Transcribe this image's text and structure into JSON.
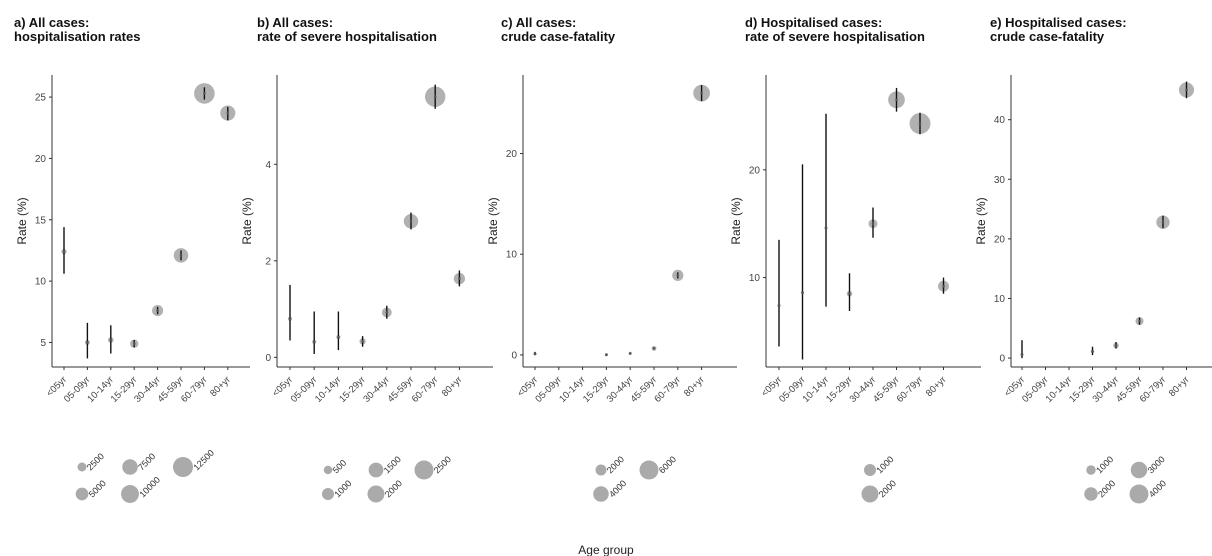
{
  "figure": {
    "x_axis_label": "Age group"
  },
  "chart_data": [
    {
      "type": "scatter",
      "title_line1": "a) All cases:",
      "title_line2": "hospitalisation rates",
      "xlabel": "Age group",
      "ylabel": "Rate (%)",
      "categories": [
        "<05yr",
        "05-09yr",
        "10-14yr",
        "15-29yr",
        "30-44yr",
        "45-59yr",
        "60-79yr",
        "80+yr"
      ],
      "ylim": [
        3,
        26.8
      ],
      "yticks": [
        5,
        10,
        15,
        20,
        25
      ],
      "points": [
        {
          "x": "<05yr",
          "y": 12.4,
          "lo": 10.6,
          "hi": 14.4,
          "n": 800
        },
        {
          "x": "05-09yr",
          "y": 5.0,
          "lo": 3.7,
          "hi": 6.6,
          "n": 700
        },
        {
          "x": "10-14yr",
          "y": 5.2,
          "lo": 4.1,
          "hi": 6.4,
          "n": 900
        },
        {
          "x": "15-29yr",
          "y": 4.9,
          "lo": 4.6,
          "hi": 5.2,
          "n": 2000
        },
        {
          "x": "30-44yr",
          "y": 7.6,
          "lo": 7.3,
          "hi": 7.9,
          "n": 3500
        },
        {
          "x": "45-59yr",
          "y": 12.1,
          "lo": 11.7,
          "hi": 12.5,
          "n": 6000
        },
        {
          "x": "60-79yr",
          "y": 25.3,
          "lo": 24.8,
          "hi": 25.8,
          "n": 12000
        },
        {
          "x": "80+yr",
          "y": 23.7,
          "lo": 23.1,
          "hi": 24.2,
          "n": 6500
        }
      ],
      "size_legend": [
        2500,
        5000,
        7500,
        10000,
        12500
      ]
    },
    {
      "type": "scatter",
      "title_line1": "b) All cases:",
      "title_line2": "rate of severe hospitalisation",
      "xlabel": "Age group",
      "ylabel": "Rate (%)",
      "categories": [
        "<05yr",
        "05-09yr",
        "10-14yr",
        "15-29yr",
        "30-44yr",
        "45-59yr",
        "60-79yr",
        "80+yr"
      ],
      "ylim": [
        -0.2,
        5.85
      ],
      "yticks": [
        0,
        2,
        4
      ],
      "points": [
        {
          "x": "<05yr",
          "y": 0.8,
          "lo": 0.35,
          "hi": 1.5,
          "n": 100
        },
        {
          "x": "05-09yr",
          "y": 0.32,
          "lo": 0.07,
          "hi": 0.95,
          "n": 100
        },
        {
          "x": "10-14yr",
          "y": 0.42,
          "lo": 0.15,
          "hi": 0.95,
          "n": 100
        },
        {
          "x": "15-29yr",
          "y": 0.33,
          "lo": 0.22,
          "hi": 0.44,
          "n": 250
        },
        {
          "x": "30-44yr",
          "y": 0.93,
          "lo": 0.8,
          "hi": 1.07,
          "n": 600
        },
        {
          "x": "45-59yr",
          "y": 2.82,
          "lo": 2.65,
          "hi": 3.0,
          "n": 1300
        },
        {
          "x": "60-79yr",
          "y": 5.4,
          "lo": 5.15,
          "hi": 5.65,
          "n": 2600
        },
        {
          "x": "80+yr",
          "y": 1.63,
          "lo": 1.47,
          "hi": 1.8,
          "n": 800
        }
      ],
      "size_legend": [
        500,
        1000,
        1500,
        2000,
        2500
      ]
    },
    {
      "type": "scatter",
      "title_line1": "c) All cases:",
      "title_line2": "crude case-fatality",
      "xlabel": "Age group",
      "ylabel": "Rate (%)",
      "categories": [
        "<05yr",
        "05-09yr",
        "10-14yr",
        "15-29yr",
        "30-44yr",
        "45-59yr",
        "60-79yr",
        "80+yr"
      ],
      "ylim": [
        -1.2,
        27.8
      ],
      "yticks": [
        0,
        10,
        20
      ],
      "points": [
        {
          "x": "<05yr",
          "y": 0.1,
          "lo": 0.0,
          "hi": 0.3,
          "n": 10
        },
        {
          "x": "15-29yr",
          "y": 0.02,
          "lo": 0.0,
          "hi": 0.05,
          "n": 20
        },
        {
          "x": "30-44yr",
          "y": 0.15,
          "lo": 0.1,
          "hi": 0.2,
          "n": 80
        },
        {
          "x": "45-59yr",
          "y": 0.65,
          "lo": 0.55,
          "hi": 0.75,
          "n": 350
        },
        {
          "x": "60-79yr",
          "y": 7.9,
          "lo": 7.6,
          "hi": 8.2,
          "n": 1900
        },
        {
          "x": "80+yr",
          "y": 26.0,
          "lo": 25.2,
          "hi": 26.8,
          "n": 4200
        }
      ],
      "size_legend": [
        2000,
        4000,
        6000
      ]
    },
    {
      "type": "scatter",
      "title_line1": "d) Hospitalised cases:",
      "title_line2": "rate of severe hospitalisation",
      "xlabel": "Age group",
      "ylabel": "Rate (%)",
      "categories": [
        "<05yr",
        "05-09yr",
        "10-14yr",
        "15-29yr",
        "30-44yr",
        "45-59yr",
        "60-79yr",
        "80+yr"
      ],
      "ylim": [
        1.7,
        28.8
      ],
      "yticks": [
        10,
        20
      ],
      "points": [
        {
          "x": "<05yr",
          "y": 7.4,
          "lo": 3.6,
          "hi": 13.5,
          "n": 30
        },
        {
          "x": "05-09yr",
          "y": 8.6,
          "lo": 2.4,
          "hi": 20.5,
          "n": 20
        },
        {
          "x": "10-14yr",
          "y": 14.6,
          "lo": 7.3,
          "hi": 25.2,
          "n": 30
        },
        {
          "x": "15-29yr",
          "y": 8.5,
          "lo": 6.9,
          "hi": 10.4,
          "n": 150
        },
        {
          "x": "30-44yr",
          "y": 15.0,
          "lo": 13.7,
          "hi": 16.5,
          "n": 400
        },
        {
          "x": "45-59yr",
          "y": 26.5,
          "lo": 25.4,
          "hi": 27.6,
          "n": 1400
        },
        {
          "x": "60-79yr",
          "y": 24.3,
          "lo": 23.3,
          "hi": 25.3,
          "n": 2200
        },
        {
          "x": "80+yr",
          "y": 9.2,
          "lo": 8.5,
          "hi": 10.0,
          "n": 600
        }
      ],
      "size_legend": [
        1000,
        2000
      ]
    },
    {
      "type": "scatter",
      "title_line1": "e) Hospitalised cases:",
      "title_line2": "crude case-fatality",
      "xlabel": "Age group",
      "ylabel": "Rate (%)",
      "categories": [
        "<05yr",
        "05-09yr",
        "10-14yr",
        "15-29yr",
        "30-44yr",
        "45-59yr",
        "60-79yr",
        "80+yr"
      ],
      "ylim": [
        -1.5,
        47.5
      ],
      "yticks": [
        0,
        10,
        20,
        30,
        40
      ],
      "points": [
        {
          "x": "<05yr",
          "y": 0.6,
          "lo": 0.0,
          "hi": 3.0,
          "n": 30
        },
        {
          "x": "15-29yr",
          "y": 1.1,
          "lo": 0.5,
          "hi": 1.9,
          "n": 150
        },
        {
          "x": "30-44yr",
          "y": 2.1,
          "lo": 1.6,
          "hi": 2.7,
          "n": 400
        },
        {
          "x": "45-59yr",
          "y": 6.2,
          "lo": 5.6,
          "hi": 6.8,
          "n": 800
        },
        {
          "x": "60-79yr",
          "y": 22.8,
          "lo": 21.8,
          "hi": 23.9,
          "n": 2200
        },
        {
          "x": "80+yr",
          "y": 45.0,
          "lo": 43.6,
          "hi": 46.4,
          "n": 2800
        }
      ],
      "size_legend": [
        1000,
        2000,
        3000,
        4000
      ]
    }
  ]
}
